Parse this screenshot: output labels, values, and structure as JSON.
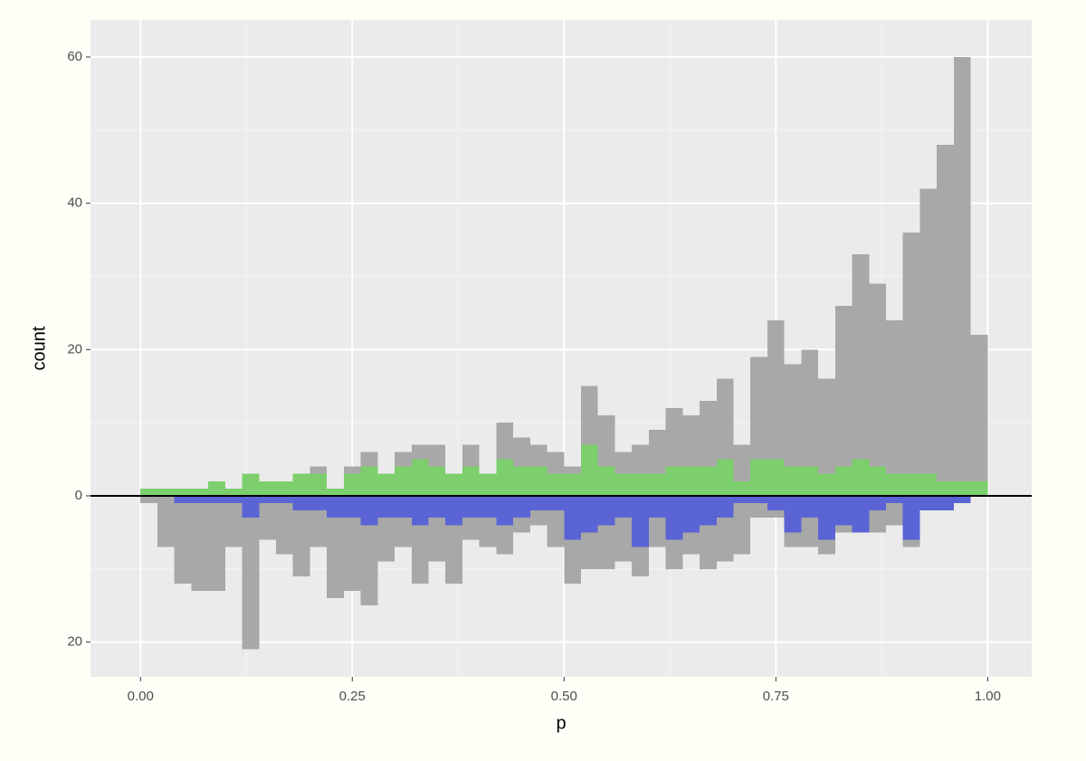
{
  "chart_data": {
    "type": "histogram",
    "x_label": "p",
    "y_label": "count",
    "bins": [
      0,
      0.02,
      0.04,
      0.06,
      0.08,
      0.1,
      0.12,
      0.14,
      0.16,
      0.18,
      0.2,
      0.22,
      0.24,
      0.26,
      0.28,
      0.3,
      0.32,
      0.34,
      0.36,
      0.38,
      0.4,
      0.42,
      0.44,
      0.46,
      0.48,
      0.5,
      0.52,
      0.54,
      0.56,
      0.58,
      0.6,
      0.62,
      0.64,
      0.66,
      0.68,
      0.7,
      0.72,
      0.74,
      0.76,
      0.78,
      0.8,
      0.82,
      0.84,
      0.86,
      0.88,
      0.9,
      0.92,
      0.94,
      0.96,
      0.98,
      1.0
    ],
    "series": [
      {
        "color": "#a8a8a8",
        "values": [
          1,
          1,
          1,
          1,
          2,
          1,
          3,
          2,
          2,
          3,
          4,
          1,
          4,
          6,
          3,
          6,
          7,
          7,
          3,
          7,
          3,
          10,
          8,
          7,
          6,
          4,
          15,
          11,
          6,
          7,
          9,
          12,
          11,
          13,
          16,
          7,
          19,
          24,
          18,
          20,
          16,
          26,
          33,
          29,
          24,
          36,
          42,
          48,
          60,
          22
        ]
      },
      {
        "color": "#7ccf6c",
        "values": [
          1,
          1,
          1,
          1,
          2,
          1,
          3,
          2,
          2,
          3,
          3,
          1,
          3,
          4,
          3,
          4,
          5,
          4,
          3,
          4,
          3,
          5,
          4,
          4,
          3,
          3,
          7,
          4,
          3,
          3,
          3,
          4,
          4,
          4,
          5,
          2,
          5,
          5,
          4,
          4,
          3,
          4,
          5,
          4,
          3,
          3,
          3,
          2,
          2,
          2
        ]
      },
      {
        "color": "#a8a8a8",
        "values": [
          -1,
          -7,
          -12,
          -13,
          -13,
          -7,
          -21,
          -6,
          -8,
          -11,
          -7,
          -14,
          -13,
          -15,
          -9,
          -7,
          -12,
          -9,
          -12,
          -6,
          -7,
          -8,
          -5,
          -4,
          -7,
          -12,
          -10,
          -10,
          -9,
          -11,
          -7,
          -10,
          -8,
          -10,
          -9,
          -8,
          -3,
          -3,
          -7,
          -7,
          -8,
          -5,
          -4,
          -5,
          -4,
          -7,
          -2,
          -2,
          -1,
          0
        ]
      },
      {
        "color": "#5a64d4",
        "values": [
          0,
          0,
          -1,
          -1,
          -1,
          -1,
          -3,
          -1,
          -1,
          -2,
          -2,
          -3,
          -3,
          -4,
          -3,
          -3,
          -4,
          -3,
          -4,
          -3,
          -3,
          -4,
          -3,
          -2,
          -2,
          -6,
          -5,
          -4,
          -3,
          -7,
          -3,
          -6,
          -5,
          -4,
          -3,
          -1,
          -1,
          -2,
          -5,
          -3,
          -6,
          -4,
          -5,
          -2,
          -1,
          -6,
          -2,
          -2,
          -1,
          0
        ]
      }
    ],
    "xlim": [
      -0.059,
      1.052
    ],
    "ylim": [
      -24.75,
      65.07
    ],
    "xticks": [
      {
        "value": 0,
        "label": "0.00"
      },
      {
        "value": 0.25,
        "label": "0.25"
      },
      {
        "value": 0.5,
        "label": "0.50"
      },
      {
        "value": 0.75,
        "label": "0.75"
      },
      {
        "value": 1,
        "label": "1.00"
      }
    ],
    "yticks": [
      60,
      40,
      20,
      0,
      {
        "value": -20,
        "label": "20"
      }
    ],
    "x_minor_grid": [
      0.125,
      0.375,
      0.625,
      0.875
    ],
    "y_minor_grid": [
      50,
      30,
      10,
      -10
    ],
    "grid": true,
    "zero_line": true
  }
}
